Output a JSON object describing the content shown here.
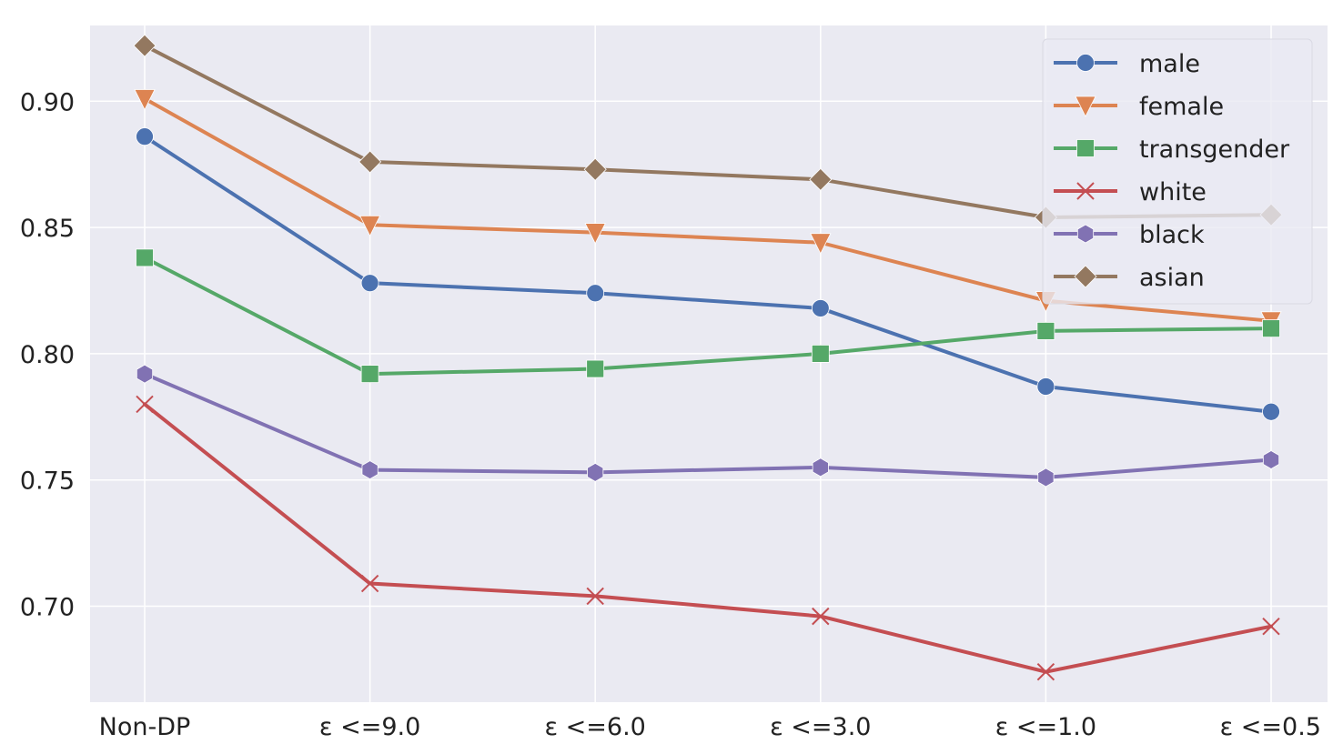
{
  "chart_data": {
    "type": "line",
    "categories": [
      "Non-DP",
      "ε <=9.0",
      "ε <=6.0",
      "ε <=3.0",
      "ε <=1.0",
      "ε <=0.5"
    ],
    "ylim": [
      0.662,
      0.93
    ],
    "yticks": [
      0.7,
      0.75,
      0.8,
      0.85,
      0.9
    ],
    "ytick_labels": [
      "0.70",
      "0.75",
      "0.80",
      "0.85",
      "0.90"
    ],
    "grid": true,
    "legend_position": "top-right",
    "series": [
      {
        "name": "male",
        "color": "#4c72b0",
        "marker": "circle",
        "values": [
          0.886,
          0.828,
          0.824,
          0.818,
          0.787,
          0.777
        ]
      },
      {
        "name": "female",
        "color": "#dd8452",
        "marker": "triangle-down",
        "values": [
          0.901,
          0.851,
          0.848,
          0.844,
          0.821,
          0.813
        ]
      },
      {
        "name": "transgender",
        "color": "#55a868",
        "marker": "square",
        "values": [
          0.838,
          0.792,
          0.794,
          0.8,
          0.809,
          0.81
        ]
      },
      {
        "name": "white",
        "color": "#c44e52",
        "marker": "x",
        "values": [
          0.78,
          0.709,
          0.704,
          0.696,
          0.674,
          0.692
        ]
      },
      {
        "name": "black",
        "color": "#8172b3",
        "marker": "hexagon",
        "values": [
          0.792,
          0.754,
          0.753,
          0.755,
          0.751,
          0.758
        ]
      },
      {
        "name": "asian",
        "color": "#937860",
        "marker": "diamond",
        "values": [
          0.922,
          0.876,
          0.873,
          0.869,
          0.854,
          0.855
        ]
      }
    ]
  }
}
